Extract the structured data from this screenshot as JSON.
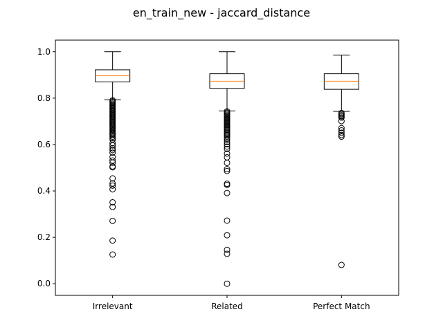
{
  "chart_data": {
    "type": "boxplot",
    "title": "en_train_new - jaccard_distance",
    "xlabel": "",
    "ylabel": "",
    "ylim": [
      -0.05,
      1.05
    ],
    "yticks": [
      0.0,
      0.2,
      0.4,
      0.6,
      0.8,
      1.0
    ],
    "ytick_labels": [
      "0.0",
      "0.2",
      "0.4",
      "0.6",
      "0.8",
      "1.0"
    ],
    "grid": false,
    "categories": [
      "Irrelevant",
      "Related",
      "Perfect Match"
    ],
    "boxes": [
      {
        "category": "Irrelevant",
        "whisker_low": 0.793,
        "q1": 0.87,
        "median": 0.897,
        "q3": 0.922,
        "whisker_high": 1.0,
        "outliers": [
          0.791,
          0.786,
          0.781,
          0.776,
          0.771,
          0.766,
          0.761,
          0.756,
          0.751,
          0.746,
          0.741,
          0.736,
          0.731,
          0.726,
          0.721,
          0.716,
          0.711,
          0.706,
          0.701,
          0.696,
          0.691,
          0.686,
          0.681,
          0.676,
          0.671,
          0.666,
          0.661,
          0.656,
          0.651,
          0.646,
          0.641,
          0.634,
          0.627,
          0.621,
          0.606,
          0.596,
          0.584,
          0.576,
          0.565,
          0.546,
          0.531,
          0.522,
          0.506,
          0.502,
          0.454,
          0.432,
          0.423,
          0.407,
          0.351,
          0.331,
          0.271,
          0.186,
          0.126
        ]
      },
      {
        "category": "Related",
        "whisker_low": 0.745,
        "q1": 0.842,
        "median": 0.873,
        "q3": 0.905,
        "whisker_high": 1.0,
        "outliers": [
          0.743,
          0.738,
          0.733,
          0.728,
          0.723,
          0.718,
          0.713,
          0.708,
          0.703,
          0.698,
          0.693,
          0.688,
          0.683,
          0.678,
          0.673,
          0.668,
          0.663,
          0.656,
          0.651,
          0.646,
          0.641,
          0.635,
          0.627,
          0.621,
          0.611,
          0.601,
          0.591,
          0.581,
          0.561,
          0.545,
          0.521,
          0.494,
          0.486,
          0.431,
          0.426,
          0.391,
          0.272,
          0.209,
          0.146,
          0.129,
          0.0
        ]
      },
      {
        "category": "Perfect Match",
        "whisker_low": 0.743,
        "q1": 0.838,
        "median": 0.873,
        "q3": 0.905,
        "whisker_high": 0.985,
        "outliers": [
          0.736,
          0.731,
          0.726,
          0.721,
          0.716,
          0.701,
          0.671,
          0.661,
          0.651,
          0.641,
          0.634,
          0.081
        ]
      }
    ],
    "colors": {
      "box": "#000000",
      "median": "#ff7f0e",
      "outlier": "#000000"
    }
  }
}
